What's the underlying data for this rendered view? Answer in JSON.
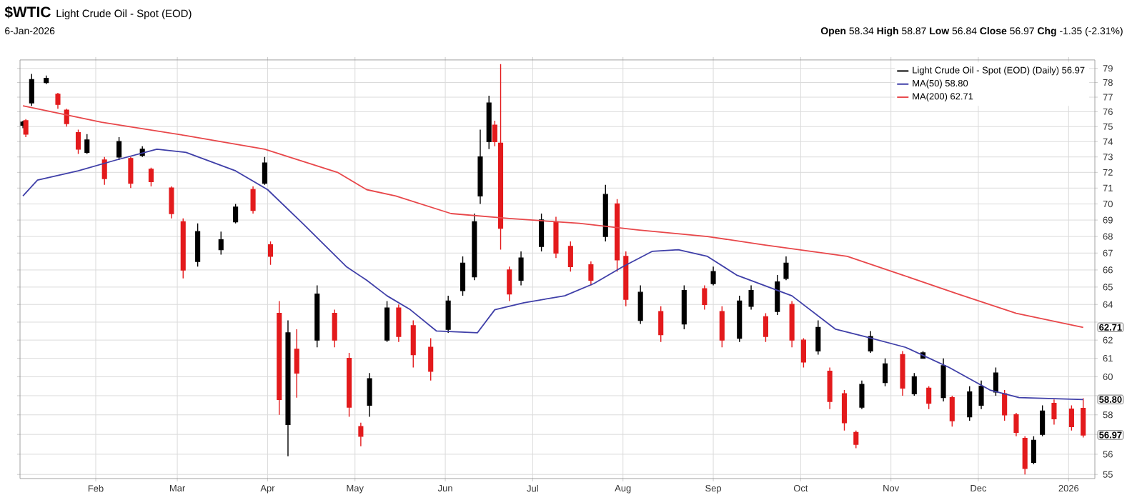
{
  "chart_data": {
    "type": "candlestick",
    "title": "$WTIC",
    "subtitle": "Light Crude Oil - Spot (EOD)",
    "annotations": [
      "6-Jan-2026",
      "**Open** 58.34 **High** 58.87 **Low** 56.84 **Close** 56.97 **Chg** -1.35 (-2.31%)",
      {
        "text": "62.71",
        "x": "2026-01-06",
        "y": 62.71
      },
      {
        "text": "58.80",
        "x": "2026-01-06",
        "y": 58.8
      },
      {
        "text": "56.97",
        "x": "2026-01-06",
        "y": 56.97
      }
    ],
    "series": [
      {
        "name": "Light Crude Oil - Spot (EOD) (Daily) 56.97",
        "x": [
          "2025-01-07",
          "2025-01-08",
          "2025-01-10",
          "2025-01-15",
          "2025-01-19",
          "2025-01-22",
          "2025-01-26",
          "2025-01-29",
          "2025-02-04",
          "2025-02-09",
          "2025-02-13",
          "2025-02-17",
          "2025-02-20",
          "2025-02-27",
          "2025-03-03",
          "2025-03-08",
          "2025-03-16",
          "2025-03-21",
          "2025-03-27",
          "2025-03-31",
          "2025-04-02",
          "2025-04-05",
          "2025-04-08",
          "2025-04-11",
          "2025-04-18",
          "2025-04-24",
          "2025-04-29",
          "2025-05-03",
          "2025-05-06",
          "2025-05-12",
          "2025-05-16",
          "2025-05-21",
          "2025-05-27",
          "2025-06-02",
          "2025-06-07",
          "2025-06-11",
          "2025-06-13",
          "2025-06-16",
          "2025-06-18",
          "2025-06-20",
          "2025-06-23",
          "2025-06-27",
          "2025-07-04",
          "2025-07-09",
          "2025-07-14",
          "2025-07-21",
          "2025-07-26",
          "2025-07-30",
          "2025-08-02",
          "2025-08-07",
          "2025-08-14",
          "2025-08-22",
          "2025-08-29",
          "2025-09-01",
          "2025-09-04",
          "2025-09-10",
          "2025-09-14",
          "2025-09-19",
          "2025-09-23",
          "2025-09-26",
          "2025-09-28",
          "2025-10-02",
          "2025-10-07",
          "2025-10-11",
          "2025-10-16",
          "2025-10-20",
          "2025-10-22",
          "2025-10-25",
          "2025-10-30",
          "2025-11-05",
          "2025-11-09",
          "2025-11-12",
          "2025-11-14",
          "2025-11-19",
          "2025-11-22",
          "2025-11-28",
          "2025-12-02",
          "2025-12-07",
          "2025-12-10",
          "2025-12-14",
          "2025-12-17",
          "2025-12-20",
          "2025-12-23",
          "2025-12-27",
          "2026-01-02",
          "2026-01-06"
        ],
        "ohlc": [
          [
            75.1,
            75.4,
            74.9,
            75.3
          ],
          [
            75.4,
            75.5,
            74.3,
            74.5
          ],
          [
            76.6,
            78.6,
            76.4,
            78.2
          ],
          [
            78.0,
            78.5,
            77.9,
            78.3
          ],
          [
            77.2,
            77.3,
            76.2,
            76.5
          ],
          [
            76.1,
            76.2,
            75.0,
            75.2
          ],
          [
            74.6,
            74.8,
            73.2,
            73.5
          ],
          [
            73.3,
            74.5,
            73.2,
            74.1
          ],
          [
            72.8,
            73.0,
            71.2,
            71.6
          ],
          [
            73.0,
            74.3,
            72.8,
            74.0
          ],
          [
            72.9,
            73.0,
            71.0,
            71.3
          ],
          [
            73.1,
            73.7,
            73.0,
            73.5
          ],
          [
            72.2,
            72.3,
            71.1,
            71.4
          ],
          [
            71.0,
            71.1,
            69.1,
            69.4
          ],
          [
            68.9,
            69.1,
            65.5,
            66.0
          ],
          [
            66.5,
            68.8,
            66.2,
            68.3
          ],
          [
            67.2,
            68.3,
            66.9,
            67.8
          ],
          [
            68.9,
            70.0,
            68.8,
            69.8
          ],
          [
            70.9,
            71.1,
            69.4,
            69.6
          ],
          [
            71.3,
            73.0,
            71.2,
            72.6
          ],
          [
            67.5,
            67.7,
            66.3,
            66.8
          ],
          [
            63.5,
            64.2,
            58.0,
            58.8
          ],
          [
            57.5,
            63.1,
            55.9,
            62.4
          ],
          [
            61.5,
            62.6,
            58.9,
            60.2
          ],
          [
            62.0,
            65.1,
            61.6,
            64.6
          ],
          [
            63.5,
            63.7,
            61.6,
            62.0
          ],
          [
            61.0,
            61.3,
            57.9,
            58.4
          ],
          [
            57.4,
            57.6,
            56.4,
            56.9
          ],
          [
            58.5,
            60.2,
            57.9,
            59.9
          ],
          [
            62.0,
            64.2,
            61.9,
            63.8
          ],
          [
            63.8,
            64.0,
            61.9,
            62.2
          ],
          [
            62.8,
            63.1,
            60.5,
            61.2
          ],
          [
            61.6,
            62.1,
            59.8,
            60.3
          ],
          [
            62.6,
            64.5,
            62.4,
            64.2
          ],
          [
            64.8,
            66.8,
            64.5,
            66.4
          ],
          [
            65.6,
            69.4,
            65.4,
            68.9
          ],
          [
            70.5,
            74.8,
            70.0,
            73.0
          ],
          [
            74.0,
            77.1,
            73.5,
            76.6
          ],
          [
            75.1,
            75.4,
            73.7,
            74.0
          ],
          [
            73.9,
            79.3,
            67.2,
            68.5
          ],
          [
            66.0,
            66.2,
            64.2,
            64.6
          ],
          [
            65.4,
            67.1,
            65.1,
            66.7
          ],
          [
            67.4,
            69.4,
            67.1,
            69.0
          ],
          [
            68.9,
            69.2,
            66.7,
            67.0
          ],
          [
            67.4,
            67.7,
            65.9,
            66.2
          ],
          [
            66.3,
            66.5,
            65.1,
            65.4
          ],
          [
            68.0,
            71.2,
            67.7,
            70.6
          ],
          [
            70.0,
            70.3,
            65.9,
            66.6
          ],
          [
            66.8,
            67.1,
            63.9,
            64.3
          ],
          [
            63.1,
            65.1,
            62.9,
            64.7
          ],
          [
            63.6,
            63.9,
            61.9,
            62.3
          ],
          [
            62.9,
            65.1,
            62.6,
            64.8
          ],
          [
            64.9,
            65.1,
            63.7,
            64.0
          ],
          [
            65.2,
            66.2,
            65.1,
            65.9
          ],
          [
            63.6,
            63.9,
            61.6,
            62.0
          ],
          [
            62.1,
            64.5,
            61.9,
            64.2
          ],
          [
            63.9,
            65.1,
            63.7,
            64.8
          ],
          [
            63.3,
            63.5,
            61.9,
            62.2
          ],
          [
            63.6,
            65.7,
            63.4,
            65.3
          ],
          [
            65.5,
            66.8,
            65.4,
            66.4
          ],
          [
            64.0,
            64.2,
            61.6,
            62.0
          ],
          [
            62.0,
            62.1,
            60.5,
            60.8
          ],
          [
            61.4,
            63.1,
            61.2,
            62.7
          ],
          [
            60.3,
            60.5,
            58.3,
            58.7
          ],
          [
            59.1,
            59.3,
            57.2,
            57.6
          ],
          [
            57.1,
            57.2,
            56.3,
            56.5
          ],
          [
            58.4,
            59.8,
            58.3,
            59.6
          ],
          [
            61.4,
            62.5,
            61.3,
            62.2
          ],
          [
            59.7,
            61.0,
            59.5,
            60.7
          ],
          [
            61.2,
            61.4,
            59.0,
            59.4
          ],
          [
            59.1,
            60.2,
            59.0,
            60.0
          ],
          [
            61.0,
            61.4,
            61.0,
            61.3
          ],
          [
            59.4,
            59.5,
            58.3,
            58.6
          ],
          [
            58.9,
            61.0,
            58.7,
            60.6
          ],
          [
            58.9,
            59.0,
            57.4,
            57.7
          ],
          [
            57.9,
            59.5,
            57.7,
            59.2
          ],
          [
            58.5,
            59.8,
            58.3,
            59.5
          ],
          [
            59.2,
            60.5,
            59.0,
            60.2
          ],
          [
            59.1,
            59.3,
            57.7,
            58.0
          ],
          [
            58.0,
            58.1,
            56.9,
            57.1
          ],
          [
            56.8,
            56.9,
            55.0,
            55.3
          ],
          [
            55.6,
            56.9,
            55.5,
            56.7
          ],
          [
            57.0,
            58.5,
            56.9,
            58.2
          ],
          [
            58.6,
            58.8,
            57.5,
            57.8
          ],
          [
            58.3,
            58.5,
            57.2,
            57.4
          ],
          [
            58.34,
            58.87,
            56.84,
            56.97
          ]
        ],
        "colors": [
          "#000000",
          "#e31a1c",
          "#000000",
          "#000000",
          "#e31a1c",
          "#e31a1c",
          "#e31a1c",
          "#000000",
          "#e31a1c",
          "#000000",
          "#e31a1c",
          "#000000",
          "#e31a1c",
          "#e31a1c",
          "#e31a1c",
          "#000000",
          "#000000",
          "#000000",
          "#e31a1c",
          "#000000",
          "#e31a1c",
          "#e31a1c",
          "#000000",
          "#e31a1c",
          "#000000",
          "#e31a1c",
          "#e31a1c",
          "#e31a1c",
          "#000000",
          "#000000",
          "#e31a1c",
          "#e31a1c",
          "#e31a1c",
          "#000000",
          "#000000",
          "#000000",
          "#000000",
          "#000000",
          "#e31a1c",
          "#e31a1c",
          "#e31a1c",
          "#000000",
          "#000000",
          "#e31a1c",
          "#e31a1c",
          "#e31a1c",
          "#000000",
          "#e31a1c",
          "#e31a1c",
          "#000000",
          "#e31a1c",
          "#000000",
          "#e31a1c",
          "#000000",
          "#e31a1c",
          "#000000",
          "#000000",
          "#e31a1c",
          "#000000",
          "#000000",
          "#e31a1c",
          "#e31a1c",
          "#000000",
          "#e31a1c",
          "#e31a1c",
          "#e31a1c",
          "#000000",
          "#000000",
          "#000000",
          "#e31a1c",
          "#000000",
          "#000000",
          "#e31a1c",
          "#000000",
          "#e31a1c",
          "#000000",
          "#000000",
          "#000000",
          "#e31a1c",
          "#e31a1c",
          "#e31a1c",
          "#000000",
          "#000000",
          "#e31a1c",
          "#e31a1c",
          "#e31a1c"
        ]
      },
      {
        "type": "line",
        "name": "MA(50) 58.80",
        "color": "#3f3fa8",
        "x": [
          "2025-01-07",
          "2025-01-12",
          "2025-01-26",
          "2025-02-08",
          "2025-02-22",
          "2025-03-04",
          "2025-03-21",
          "2025-04-01",
          "2025-04-13",
          "2025-04-28",
          "2025-05-05",
          "2025-05-12",
          "2025-05-20",
          "2025-05-29",
          "2025-06-12",
          "2025-06-18",
          "2025-06-28",
          "2025-07-12",
          "2025-07-22",
          "2025-08-01",
          "2025-08-11",
          "2025-08-20",
          "2025-08-30",
          "2025-09-09",
          "2025-09-28",
          "2025-10-13",
          "2025-10-23",
          "2025-11-06",
          "2025-11-21",
          "2025-12-05",
          "2025-12-15",
          "2026-01-06"
        ],
        "values": [
          70.5,
          71.5,
          72.1,
          72.8,
          73.5,
          73.3,
          72.1,
          70.9,
          68.8,
          66.2,
          65.4,
          64.5,
          63.7,
          62.5,
          62.4,
          63.7,
          64.1,
          64.5,
          65.2,
          66.2,
          67.1,
          67.2,
          66.8,
          65.7,
          64.5,
          62.6,
          62.2,
          61.6,
          60.5,
          59.3,
          58.9,
          58.8
        ]
      },
      {
        "type": "line",
        "name": "MA(200) 62.71",
        "color": "#e8474a",
        "x": [
          "2025-01-07",
          "2025-02-03",
          "2025-03-04",
          "2025-03-31",
          "2025-04-25",
          "2025-05-05",
          "2025-05-15",
          "2025-06-03",
          "2025-06-23",
          "2025-07-17",
          "2025-08-06",
          "2025-08-30",
          "2025-09-18",
          "2025-10-17",
          "2025-11-05",
          "2025-11-24",
          "2025-12-14",
          "2026-01-06"
        ],
        "values": [
          76.4,
          75.3,
          74.4,
          73.5,
          72.0,
          70.9,
          70.5,
          69.4,
          69.1,
          68.8,
          68.4,
          68.0,
          67.5,
          66.8,
          65.7,
          64.6,
          63.5,
          62.71
        ]
      }
    ],
    "xlim": [
      "2025-01-06",
      "2026-01-10"
    ],
    "ylim": [
      54.8,
      79.6
    ],
    "xticks": [
      {
        "value": "2025-02-01",
        "label": "Feb"
      },
      {
        "value": "2025-03-01",
        "label": "Mar"
      },
      {
        "value": "2025-04-01",
        "label": "Apr"
      },
      {
        "value": "2025-05-01",
        "label": "May"
      },
      {
        "value": "2025-06-01",
        "label": "Jun"
      },
      {
        "value": "2025-07-01",
        "label": "Jul"
      },
      {
        "value": "2025-08-01",
        "label": "Aug"
      },
      {
        "value": "2025-09-01",
        "label": "Sep"
      },
      {
        "value": "2025-10-01",
        "label": "Oct"
      },
      {
        "value": "2025-11-01",
        "label": "Nov"
      },
      {
        "value": "2025-12-01",
        "label": "Dec"
      },
      {
        "value": "2026-01-01",
        "label": "2026"
      }
    ],
    "yticks": [
      55,
      56,
      {
        "value": 57,
        "label": null
      },
      58,
      {
        "value": 59,
        "label": null
      },
      60,
      61,
      62,
      {
        "value": 63,
        "label": null
      },
      64,
      65,
      66,
      67,
      68,
      69,
      70,
      71,
      72,
      73,
      74,
      75,
      76,
      77,
      78,
      79
    ],
    "log": true,
    "grid": true,
    "legend": "top right"
  }
}
